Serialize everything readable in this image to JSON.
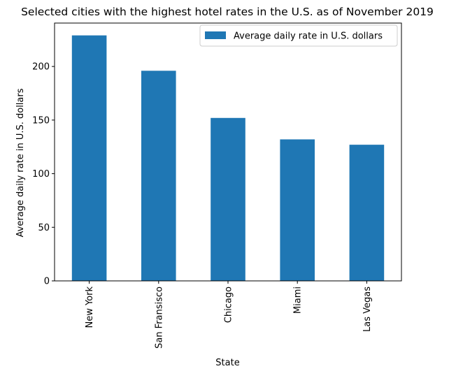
{
  "chart_data": {
    "type": "bar",
    "title": "Selected cities with the highest hotel rates in the U.S. as of November 2019",
    "xlabel": "State",
    "ylabel": "Average daily rate in U.S. dollars",
    "categories": [
      "New York",
      "San Fransisco",
      "Chicago",
      "Miami",
      "Las Vegas"
    ],
    "series": [
      {
        "name": "Average daily rate in U.S. dollars",
        "values": [
          229,
          196,
          152,
          132,
          127
        ],
        "color": "#1f77b4"
      }
    ],
    "y_ticks": [
      0,
      50,
      100,
      150,
      200
    ],
    "ylim": [
      0,
      240.5
    ],
    "grid": false,
    "legend_position": "top-right"
  }
}
